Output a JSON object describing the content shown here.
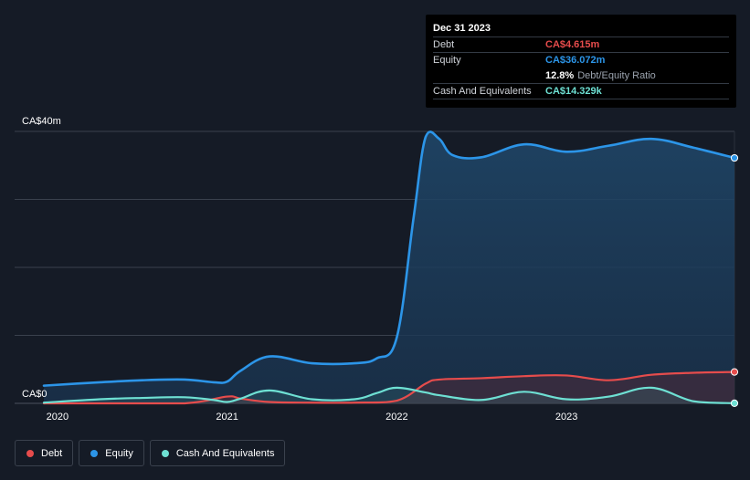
{
  "tooltip": {
    "date": "Dec 31 2023",
    "debt_label": "Debt",
    "debt_value": "CA$4.615m",
    "equity_label": "Equity",
    "equity_value": "CA$36.072m",
    "ratio_value": "12.8%",
    "ratio_label": "Debt/Equity Ratio",
    "cash_label": "Cash And Equivalents",
    "cash_value": "CA$14.329k"
  },
  "legend": {
    "debt": "Debt",
    "equity": "Equity",
    "cash": "Cash And Equivalents"
  },
  "colors": {
    "background": "#151b26",
    "debt": "#e64c4c",
    "equity": "#2c95e8",
    "cash": "#6ee0d3",
    "grid": "#3a414d"
  },
  "chart_data": {
    "type": "area",
    "title": "",
    "y_axis_labels": [
      "CA$0",
      "CA$40m"
    ],
    "ylim": [
      0,
      40
    ],
    "y_unit": "CA$ millions",
    "xlim": [
      2019.92,
      2023.99
    ],
    "x_tick_labels": [
      {
        "label": "2020",
        "x": 2020.0
      },
      {
        "label": "2021",
        "x": 2021.0
      },
      {
        "label": "2022",
        "x": 2022.0
      },
      {
        "label": "2023",
        "x": 2023.0
      }
    ],
    "series": [
      {
        "name": "Equity",
        "x": [
          2019.92,
          2020.25,
          2020.5,
          2020.75,
          2020.92,
          2021.0,
          2021.08,
          2021.25,
          2021.5,
          2021.75,
          2021.88,
          2022.0,
          2022.1,
          2022.17,
          2022.25,
          2022.33,
          2022.5,
          2022.75,
          2023.0,
          2023.25,
          2023.5,
          2023.75,
          2023.99
        ],
        "values": [
          2.6,
          3.1,
          3.4,
          3.5,
          3.1,
          3.2,
          4.8,
          6.9,
          5.9,
          5.9,
          6.6,
          9.7,
          27.5,
          39.2,
          38.9,
          36.5,
          36.2,
          38.1,
          37.0,
          37.9,
          38.9,
          37.6,
          36.1
        ]
      },
      {
        "name": "Debt",
        "x": [
          2019.92,
          2020.25,
          2020.75,
          2021.0,
          2021.08,
          2021.25,
          2021.5,
          2021.75,
          2022.0,
          2022.17,
          2022.25,
          2022.5,
          2022.75,
          2023.0,
          2023.25,
          2023.5,
          2023.75,
          2023.99
        ],
        "values": [
          0.0,
          0.0,
          0.0,
          1.0,
          0.7,
          0.2,
          0.1,
          0.1,
          0.4,
          2.9,
          3.5,
          3.7,
          4.0,
          4.1,
          3.4,
          4.2,
          4.5,
          4.615
        ]
      },
      {
        "name": "Cash And Equivalents",
        "x": [
          2019.92,
          2020.25,
          2020.5,
          2020.75,
          2020.92,
          2021.0,
          2021.08,
          2021.25,
          2021.5,
          2021.75,
          2021.88,
          2022.0,
          2022.17,
          2022.25,
          2022.5,
          2022.75,
          2023.0,
          2023.25,
          2023.5,
          2023.75,
          2023.99
        ],
        "values": [
          0.1,
          0.6,
          0.8,
          0.9,
          0.5,
          0.2,
          0.7,
          1.9,
          0.6,
          0.6,
          1.5,
          2.3,
          1.6,
          1.2,
          0.5,
          1.7,
          0.6,
          1.0,
          2.3,
          0.3,
          0.014
        ]
      }
    ]
  }
}
